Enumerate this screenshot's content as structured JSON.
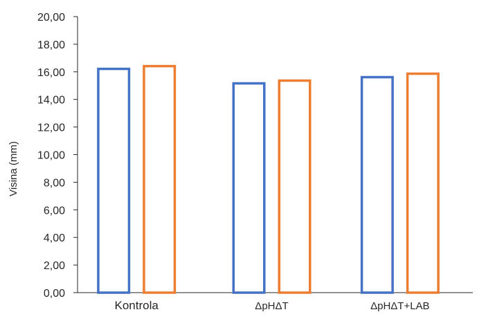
{
  "chart_data": {
    "type": "bar",
    "title": "",
    "xlabel": "",
    "ylabel": "Visina (mm)",
    "ylim": [
      0,
      20
    ],
    "ytick_step": 2,
    "ytick_labels": [
      "0,00",
      "2,00",
      "4,00",
      "6,00",
      "8,00",
      "10,00",
      "12,00",
      "14,00",
      "16,00",
      "18,00",
      "20,00"
    ],
    "categories": [
      "Kontrola",
      "ΔpHΔT",
      "ΔpHΔT+LAB"
    ],
    "series": [
      {
        "values": [
          16.3,
          15.25,
          15.7
        ],
        "color": "#4472C4"
      },
      {
        "values": [
          16.5,
          15.45,
          15.95
        ],
        "color": "#ED7D31"
      }
    ],
    "bar_style": "outline",
    "grid": false,
    "legend": "none"
  }
}
